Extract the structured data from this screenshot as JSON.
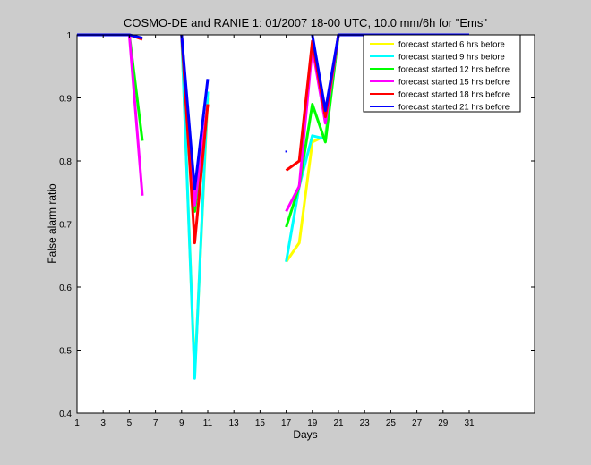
{
  "chart_data": {
    "type": "line",
    "title": "COSMO-DE and RANIE 1: 01/2007 18-00 UTC, 10.0 mm/6h for \"Ems\"",
    "xlabel": "Days",
    "ylabel": "False alarm ratio",
    "xlim": [
      1,
      36
    ],
    "ylim": [
      0.4,
      1
    ],
    "xticks": [
      1,
      3,
      5,
      7,
      9,
      11,
      13,
      15,
      17,
      19,
      21,
      23,
      25,
      27,
      29,
      31
    ],
    "yticks": [
      0.4,
      0.5,
      0.6,
      0.7,
      0.8,
      0.9,
      1
    ],
    "grid": false,
    "legend_position": "top-right",
    "series": [
      {
        "name": "forecast started 6 hrs before",
        "color": "#ffff00",
        "points": [
          [
            1,
            1
          ],
          [
            2,
            1
          ],
          [
            3,
            1
          ],
          [
            4,
            1
          ],
          [
            5,
            1
          ],
          [
            9,
            1
          ],
          [
            10,
            0.46
          ],
          [
            11,
            0.9
          ],
          [
            17,
            0.64
          ],
          [
            18,
            0.67
          ],
          [
            19,
            0.83
          ],
          [
            20,
            0.84
          ],
          [
            21,
            1
          ],
          [
            22,
            1
          ],
          [
            23,
            1
          ],
          [
            24,
            1
          ],
          [
            25,
            1
          ],
          [
            26,
            1
          ],
          [
            27,
            1
          ],
          [
            28,
            1
          ],
          [
            29,
            1
          ],
          [
            30,
            1
          ],
          [
            31,
            1
          ]
        ]
      },
      {
        "name": "forecast started 9 hrs before",
        "color": "#00ffff",
        "points": [
          [
            1,
            1
          ],
          [
            2,
            1
          ],
          [
            3,
            1
          ],
          [
            4,
            1
          ],
          [
            5,
            1
          ],
          [
            9,
            1
          ],
          [
            10,
            0.455
          ],
          [
            11,
            0.91
          ],
          [
            17,
            0.64
          ],
          [
            18,
            0.76
          ],
          [
            19,
            0.84
          ],
          [
            20,
            0.835
          ],
          [
            21,
            1
          ],
          [
            22,
            1
          ],
          [
            23,
            1
          ],
          [
            24,
            1
          ],
          [
            25,
            1
          ],
          [
            26,
            1
          ],
          [
            27,
            1
          ],
          [
            28,
            1
          ],
          [
            29,
            1
          ],
          [
            30,
            1
          ],
          [
            31,
            1
          ]
        ]
      },
      {
        "name": "forecast started 12 hrs before",
        "color": "#00ff00",
        "points": [
          [
            1,
            1
          ],
          [
            2,
            1
          ],
          [
            3,
            1
          ],
          [
            4,
            1
          ],
          [
            5,
            1
          ],
          [
            6,
            0.832
          ],
          [
            9,
            1
          ],
          [
            10,
            0.72
          ],
          [
            11,
            0.89
          ],
          [
            17,
            0.695
          ],
          [
            18,
            0.76
          ],
          [
            19,
            0.89
          ],
          [
            20,
            0.83
          ],
          [
            21,
            1
          ],
          [
            22,
            1
          ],
          [
            23,
            1
          ],
          [
            24,
            1
          ],
          [
            25,
            1
          ],
          [
            26,
            1
          ],
          [
            27,
            1
          ],
          [
            28,
            1
          ],
          [
            29,
            1
          ],
          [
            30,
            1
          ],
          [
            31,
            1
          ]
        ]
      },
      {
        "name": "forecast started 15 hrs before",
        "color": "#ff00ff",
        "points": [
          [
            1,
            1
          ],
          [
            2,
            1
          ],
          [
            3,
            1
          ],
          [
            4,
            1
          ],
          [
            5,
            1
          ],
          [
            6,
            0.745
          ],
          [
            9,
            1
          ],
          [
            10,
            0.73
          ],
          [
            11,
            0.89
          ],
          [
            17,
            0.72
          ],
          [
            18,
            0.76
          ],
          [
            19,
            0.98
          ],
          [
            20,
            0.86
          ],
          [
            21,
            1
          ],
          [
            22,
            1
          ],
          [
            23,
            1
          ],
          [
            24,
            1
          ],
          [
            25,
            1
          ],
          [
            26,
            1
          ],
          [
            27,
            1
          ],
          [
            28,
            1
          ],
          [
            29,
            1
          ],
          [
            30,
            1
          ],
          [
            31,
            1
          ]
        ]
      },
      {
        "name": "forecast started 18 hrs before",
        "color": "#ff0000",
        "points": [
          [
            1,
            1
          ],
          [
            2,
            1
          ],
          [
            3,
            1
          ],
          [
            4,
            1
          ],
          [
            5,
            1
          ],
          [
            6,
            0.993
          ],
          [
            9,
            1
          ],
          [
            10,
            0.67
          ],
          [
            11,
            0.89
          ],
          [
            17,
            0.785
          ],
          [
            18,
            0.8
          ],
          [
            19,
            0.99
          ],
          [
            20,
            0.87
          ],
          [
            21,
            1
          ],
          [
            22,
            1
          ],
          [
            23,
            1
          ],
          [
            24,
            1
          ],
          [
            25,
            1
          ],
          [
            26,
            1
          ],
          [
            27,
            1
          ],
          [
            28,
            1
          ],
          [
            29,
            1
          ],
          [
            30,
            1
          ],
          [
            31,
            1
          ]
        ]
      },
      {
        "name": "forecast started 21 hrs before",
        "color": "#0000ff",
        "points": [
          [
            1,
            1
          ],
          [
            2,
            1
          ],
          [
            3,
            1
          ],
          [
            4,
            1
          ],
          [
            5,
            1
          ],
          [
            6,
            0.995
          ],
          [
            9,
            1
          ],
          [
            10,
            0.755
          ],
          [
            11,
            0.93
          ],
          [
            17,
            0.815
          ],
          [
            19,
            1
          ],
          [
            20,
            0.88
          ],
          [
            21,
            1
          ],
          [
            22,
            1
          ],
          [
            23,
            1
          ],
          [
            24,
            1
          ],
          [
            25,
            1
          ],
          [
            26,
            1
          ],
          [
            27,
            1
          ],
          [
            28,
            1
          ],
          [
            29,
            1
          ],
          [
            30,
            1
          ],
          [
            31,
            1
          ]
        ]
      }
    ]
  }
}
